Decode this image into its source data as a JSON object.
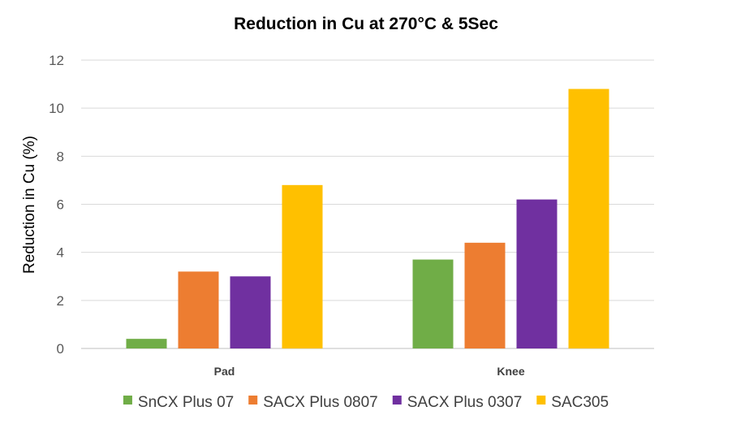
{
  "chart_data": {
    "type": "bar",
    "title": "Reduction in Cu at 270°C & 5Sec",
    "xlabel": "",
    "ylabel": "Reduction in Cu (%)",
    "ylim": [
      0,
      12
    ],
    "yticks": [
      0,
      2,
      4,
      6,
      8,
      10,
      12
    ],
    "categories": [
      "Pad",
      "Knee"
    ],
    "series": [
      {
        "name": "SnCX Plus 07",
        "color": "#70ad47",
        "values": [
          0.4,
          3.7
        ]
      },
      {
        "name": "SACX Plus 0807",
        "color": "#ed7d31",
        "values": [
          3.2,
          4.4
        ]
      },
      {
        "name": "SACX Plus 0307",
        "color": "#7030a0",
        "values": [
          3.0,
          6.2
        ]
      },
      {
        "name": "SAC305",
        "color": "#ffc000",
        "values": [
          6.8,
          10.8
        ]
      }
    ],
    "grid": true,
    "legend": "bottom"
  }
}
